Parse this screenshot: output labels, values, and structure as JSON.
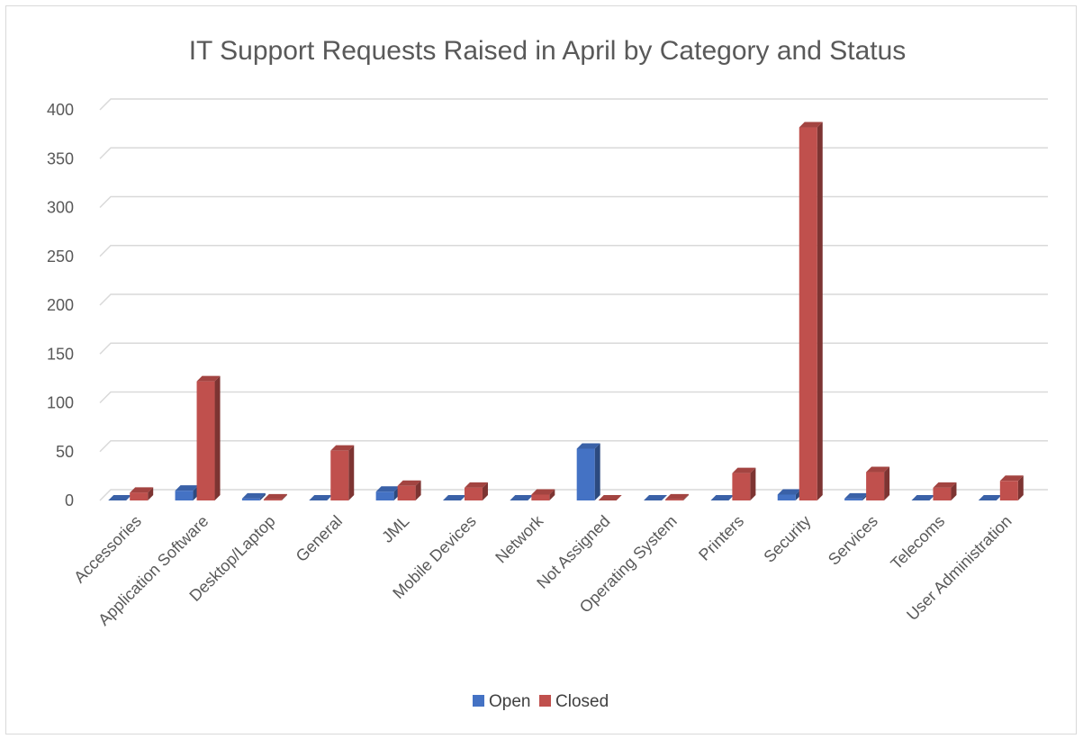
{
  "chart_data": {
    "type": "bar",
    "title": "IT Support Requests Raised in April by Category and Status",
    "xlabel": "",
    "ylabel": "",
    "ylim": [
      0,
      400
    ],
    "yticks": [
      0,
      50,
      100,
      150,
      200,
      250,
      300,
      350,
      400
    ],
    "grid": true,
    "legend_position": "bottom",
    "three_d": true,
    "categories": [
      "Accessories",
      "Application Software",
      "Desktop/Laptop",
      "General",
      "JML",
      "Mobile Devices",
      "Network",
      "Not Assigned",
      "Operating System",
      "Printers",
      "Security",
      "Services",
      "Telecoms",
      "User Administration"
    ],
    "series": [
      {
        "name": "Open",
        "color": "#4472c4",
        "values": [
          0,
          10,
          2,
          0,
          9,
          0,
          0,
          53,
          0,
          0,
          6,
          2,
          0,
          0
        ]
      },
      {
        "name": "Closed",
        "color": "#c0504d",
        "values": [
          8,
          122,
          1,
          51,
          15,
          13,
          6,
          0,
          1,
          28,
          382,
          29,
          13,
          20
        ]
      }
    ]
  }
}
